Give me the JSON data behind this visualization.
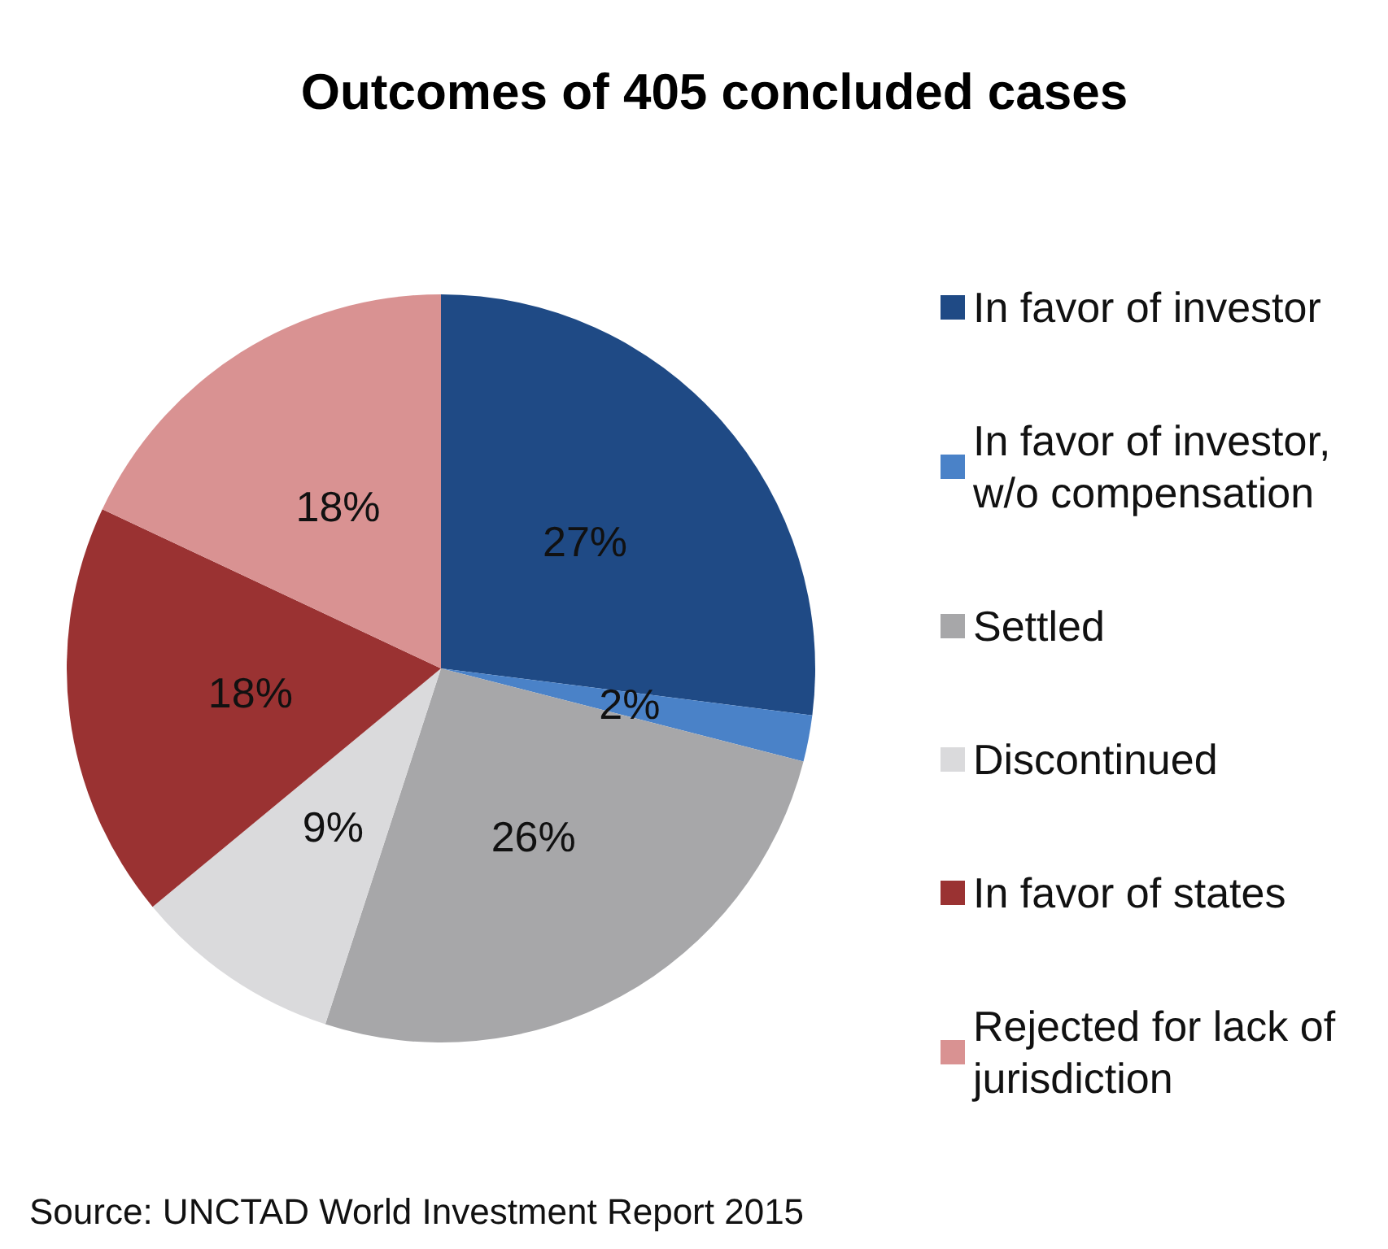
{
  "chart_data": {
    "type": "pie",
    "title": "Outcomes of 405 concluded cases",
    "categories": [
      "In favor of investor",
      "In favor of investor, w/o compensation",
      "Settled",
      "Discontinued",
      "In favor of states",
      "Rejected for lack of jurisdiction"
    ],
    "values": [
      27,
      2,
      26,
      9,
      18,
      18
    ],
    "colors": [
      "#1f4a85",
      "#4a82c8",
      "#a7a7a9",
      "#dadadc",
      "#9a3232",
      "#d99292"
    ],
    "value_labels": [
      "27%",
      "2%",
      "26%",
      "9%",
      "18%",
      "18%"
    ],
    "legend": "right",
    "annotations": [
      "Source: UNCTAD World Investment Report 2015"
    ]
  }
}
